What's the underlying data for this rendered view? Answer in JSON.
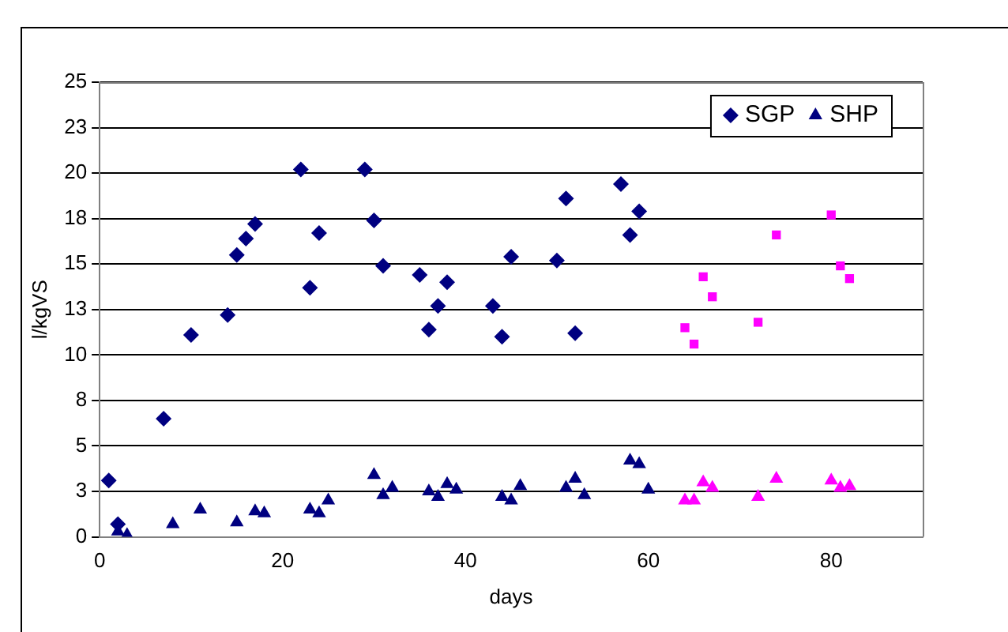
{
  "chart_data": {
    "type": "scatter",
    "xlabel": "days",
    "ylabel": "l/kgVS",
    "xlim": [
      0,
      90
    ],
    "xticks": [
      0,
      20,
      40,
      60,
      80
    ],
    "ylim": [
      0,
      25
    ],
    "yticks": [
      0,
      {
        "value": 2.5,
        "label": "3"
      },
      5,
      {
        "value": 7.5,
        "label": "8"
      },
      10,
      {
        "value": 12.5,
        "label": "13"
      },
      15,
      {
        "value": 17.5,
        "label": "18"
      },
      20,
      {
        "value": 22.5,
        "label": "23"
      },
      25
    ],
    "grid": "y",
    "legend": "top right",
    "series": [
      {
        "name": "SGP",
        "color": "#000080",
        "marker": "diamond",
        "x": [
          1,
          2,
          7,
          10,
          14,
          15,
          16,
          17,
          22,
          23,
          24,
          29,
          30,
          31,
          35,
          36,
          37,
          38,
          43,
          44,
          45,
          50,
          51,
          52,
          57,
          58,
          59
        ],
        "values": [
          3.1,
          0.7,
          6.5,
          11.1,
          12.2,
          15.5,
          16.4,
          17.2,
          20.2,
          13.7,
          16.7,
          20.2,
          17.4,
          14.9,
          14.4,
          11.4,
          12.7,
          14.0,
          12.7,
          11.0,
          15.4,
          15.2,
          18.6,
          11.2,
          19.4,
          16.6,
          17.9
        ]
      },
      {
        "name": "SHP",
        "color": "#000080",
        "marker": "triangle",
        "x": [
          2,
          3,
          8,
          11,
          15,
          17,
          18,
          23,
          24,
          25,
          30,
          31,
          32,
          36,
          37,
          38,
          39,
          44,
          45,
          46,
          51,
          52,
          53,
          58,
          59,
          60
        ],
        "values": [
          0.3,
          0.1,
          0.7,
          1.5,
          0.8,
          1.4,
          1.3,
          1.5,
          1.3,
          2.0,
          3.4,
          2.3,
          2.7,
          2.5,
          2.2,
          2.9,
          2.6,
          2.2,
          2.0,
          2.8,
          2.7,
          3.2,
          2.3,
          4.2,
          4.0,
          2.6
        ]
      },
      {
        "color": "#ff00ff",
        "marker": "square",
        "x": [
          64,
          65,
          66,
          67,
          72,
          74,
          80,
          81,
          82
        ],
        "values": [
          11.5,
          10.6,
          14.3,
          13.2,
          11.8,
          16.6,
          17.7,
          14.9,
          14.2
        ]
      },
      {
        "color": "#ff00ff",
        "marker": "triangle",
        "x": [
          64,
          65,
          66,
          67,
          72,
          74,
          80,
          81,
          82
        ],
        "values": [
          2.0,
          2.0,
          3.0,
          2.7,
          2.2,
          3.2,
          3.1,
          2.7,
          2.8
        ]
      }
    ]
  }
}
